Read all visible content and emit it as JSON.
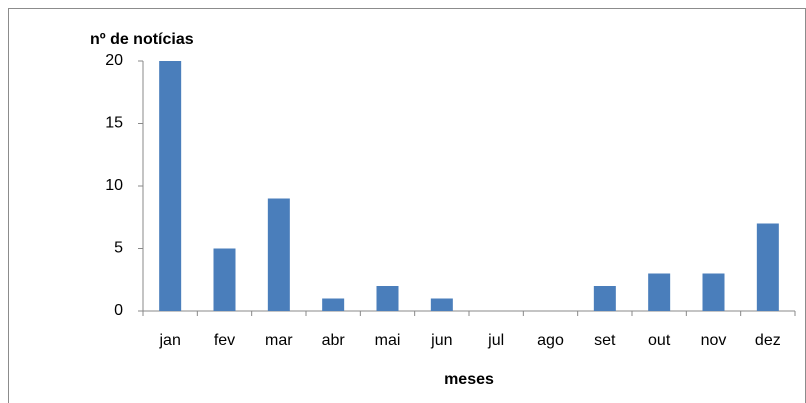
{
  "chart_data": {
    "type": "bar",
    "y_label": "nº de notícias",
    "x_label": "meses",
    "categories": [
      "jan",
      "fev",
      "mar",
      "abr",
      "mai",
      "jun",
      "jul",
      "ago",
      "set",
      "out",
      "nov",
      "dez"
    ],
    "values": [
      20,
      5,
      9,
      1,
      2,
      1,
      0,
      0,
      2,
      3,
      3,
      7
    ],
    "color": "#4a7ebb",
    "ylim": [
      0,
      20
    ],
    "yticks": [
      0,
      5,
      10,
      15,
      20
    ],
    "grid": false
  }
}
